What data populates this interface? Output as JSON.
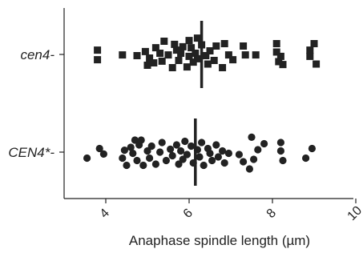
{
  "chart_data": {
    "type": "scatter",
    "title": "",
    "xlabel": "Anaphase spindle length (µm)",
    "ylabel": "",
    "xlim": [
      3.1,
      10
    ],
    "x_ticks": [
      4,
      6,
      8,
      10
    ],
    "x_tick_labels": [
      "4",
      "6",
      "8",
      "10"
    ],
    "grid": false,
    "legend": "none",
    "marker_color": "#222222",
    "axis_color": "#222222",
    "categories": [
      "cen4-",
      "CEN4*-"
    ],
    "series": [
      {
        "name": "cen4-",
        "marker": "square",
        "median": 6.3,
        "values": [
          {
            "x": 3.8,
            "y": 0.18
          },
          {
            "x": 3.8,
            "y": -0.22
          },
          {
            "x": 4.4,
            "y": -0.02
          },
          {
            "x": 4.75,
            "y": -0.05
          },
          {
            "x": 4.95,
            "y": 0.12
          },
          {
            "x": 5.0,
            "y": -0.45
          },
          {
            "x": 5.05,
            "y": -0.15
          },
          {
            "x": 5.15,
            "y": -0.35
          },
          {
            "x": 5.2,
            "y": 0.28
          },
          {
            "x": 5.3,
            "y": 0.05
          },
          {
            "x": 5.35,
            "y": -0.28
          },
          {
            "x": 5.4,
            "y": 0.55
          },
          {
            "x": 5.5,
            "y": -0.02
          },
          {
            "x": 5.6,
            "y": -0.55
          },
          {
            "x": 5.65,
            "y": 0.42
          },
          {
            "x": 5.7,
            "y": 0.18
          },
          {
            "x": 5.75,
            "y": -0.25
          },
          {
            "x": 5.8,
            "y": 0.05
          },
          {
            "x": 5.85,
            "y": 0.32
          },
          {
            "x": 5.95,
            "y": -0.52
          },
          {
            "x": 6.0,
            "y": 0.58
          },
          {
            "x": 6.0,
            "y": -0.08
          },
          {
            "x": 6.05,
            "y": 0.28
          },
          {
            "x": 6.1,
            "y": -0.32
          },
          {
            "x": 6.15,
            "y": 0.05
          },
          {
            "x": 6.2,
            "y": 0.68
          },
          {
            "x": 6.2,
            "y": -0.18
          },
          {
            "x": 6.3,
            "y": 0.4
          },
          {
            "x": 6.4,
            "y": -0.05
          },
          {
            "x": 6.45,
            "y": -0.4
          },
          {
            "x": 6.5,
            "y": 0.15
          },
          {
            "x": 6.6,
            "y": -0.25
          },
          {
            "x": 6.65,
            "y": 0.35
          },
          {
            "x": 6.8,
            "y": -0.55
          },
          {
            "x": 6.85,
            "y": 0.45
          },
          {
            "x": 6.95,
            "y": -0.02
          },
          {
            "x": 7.05,
            "y": -0.22
          },
          {
            "x": 7.3,
            "y": 0.35
          },
          {
            "x": 7.35,
            "y": -0.02
          },
          {
            "x": 7.6,
            "y": -0.02
          },
          {
            "x": 8.1,
            "y": 0.45
          },
          {
            "x": 8.1,
            "y": 0.1
          },
          {
            "x": 8.15,
            "y": -0.3
          },
          {
            "x": 8.2,
            "y": -0.08
          },
          {
            "x": 8.25,
            "y": -0.42
          },
          {
            "x": 8.9,
            "y": 0.18
          },
          {
            "x": 8.9,
            "y": -0.08
          },
          {
            "x": 9.0,
            "y": 0.45
          },
          {
            "x": 9.05,
            "y": -0.4
          }
        ]
      },
      {
        "name": "CEN4*-",
        "marker": "circle",
        "median": 6.15,
        "values": [
          {
            "x": 3.55,
            "y": -0.25
          },
          {
            "x": 3.85,
            "y": 0.15
          },
          {
            "x": 3.95,
            "y": -0.08
          },
          {
            "x": 4.4,
            "y": -0.25
          },
          {
            "x": 4.45,
            "y": 0.08
          },
          {
            "x": 4.5,
            "y": -0.55
          },
          {
            "x": 4.6,
            "y": 0.2
          },
          {
            "x": 4.65,
            "y": -0.05
          },
          {
            "x": 4.7,
            "y": 0.5
          },
          {
            "x": 4.75,
            "y": -0.35
          },
          {
            "x": 4.8,
            "y": 0.3
          },
          {
            "x": 4.85,
            "y": 0.5
          },
          {
            "x": 4.9,
            "y": -0.55
          },
          {
            "x": 5.0,
            "y": 0.05
          },
          {
            "x": 5.05,
            "y": -0.25
          },
          {
            "x": 5.1,
            "y": 0.25
          },
          {
            "x": 5.2,
            "y": -0.5
          },
          {
            "x": 5.3,
            "y": 0.0
          },
          {
            "x": 5.35,
            "y": 0.4
          },
          {
            "x": 5.45,
            "y": -0.35
          },
          {
            "x": 5.55,
            "y": 0.12
          },
          {
            "x": 5.6,
            "y": -0.15
          },
          {
            "x": 5.7,
            "y": 0.3
          },
          {
            "x": 5.75,
            "y": -0.5
          },
          {
            "x": 5.8,
            "y": 0.05
          },
          {
            "x": 5.85,
            "y": -0.3
          },
          {
            "x": 5.9,
            "y": 0.45
          },
          {
            "x": 5.95,
            "y": -0.1
          },
          {
            "x": 6.05,
            "y": 0.25
          },
          {
            "x": 6.1,
            "y": -0.45
          },
          {
            "x": 6.2,
            "y": 0.1
          },
          {
            "x": 6.25,
            "y": -0.2
          },
          {
            "x": 6.3,
            "y": 0.4
          },
          {
            "x": 6.35,
            "y": -0.55
          },
          {
            "x": 6.45,
            "y": 0.15
          },
          {
            "x": 6.5,
            "y": -0.05
          },
          {
            "x": 6.55,
            "y": -0.35
          },
          {
            "x": 6.65,
            "y": 0.3
          },
          {
            "x": 6.7,
            "y": -0.2
          },
          {
            "x": 6.8,
            "y": 0.05
          },
          {
            "x": 6.85,
            "y": -0.45
          },
          {
            "x": 6.95,
            "y": -0.05
          },
          {
            "x": 7.2,
            "y": -0.1
          },
          {
            "x": 7.3,
            "y": -0.4
          },
          {
            "x": 7.45,
            "y": -0.7
          },
          {
            "x": 7.5,
            "y": 0.62
          },
          {
            "x": 7.55,
            "y": -0.3
          },
          {
            "x": 7.65,
            "y": 0.1
          },
          {
            "x": 7.8,
            "y": 0.35
          },
          {
            "x": 8.2,
            "y": 0.4
          },
          {
            "x": 8.2,
            "y": 0.05
          },
          {
            "x": 8.25,
            "y": -0.35
          },
          {
            "x": 8.8,
            "y": -0.25
          },
          {
            "x": 8.95,
            "y": 0.15
          }
        ]
      }
    ]
  }
}
